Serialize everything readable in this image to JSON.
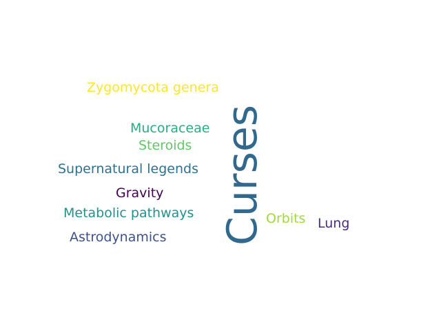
{
  "words": [
    {
      "text": "Curses",
      "color": "#31688e"
    },
    {
      "text": "Zygomycota genera",
      "color": "#fde725"
    },
    {
      "text": "Mucoraceae",
      "color": "#27ad81"
    },
    {
      "text": "Steroids",
      "color": "#5ec962"
    },
    {
      "text": "Supernatural legends",
      "color": "#2c728e"
    },
    {
      "text": "Gravity",
      "color": "#440154"
    },
    {
      "text": "Metabolic pathways",
      "color": "#21918c"
    },
    {
      "text": "Astrodynamics",
      "color": "#3b528b"
    },
    {
      "text": "Orbits",
      "color": "#a0da39"
    },
    {
      "text": "Lung",
      "color": "#472d7b"
    }
  ]
}
